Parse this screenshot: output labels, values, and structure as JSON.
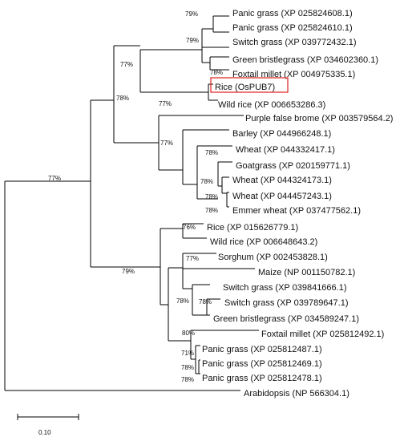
{
  "colors": {
    "highlight_box": "#e02020",
    "lines": "#000000",
    "text": "#111111"
  },
  "tree": {
    "leaves": [
      "Panic grass (XP 025824608.1)",
      "Panic grass (XP 025824610.1)",
      "Switch grass (XP 039772432.1)",
      "Green bristlegrass (XP 034602360.1)",
      "Foxtail millet (XP 004975335.1)",
      "Rice (OsPUB7)",
      "Wild rice (XP 006653286.3)",
      "Purple false brome (XP 003579564.2)",
      "Barley (XP 044966248.1)",
      "Wheat (XP 044332417.1)",
      "Goatgrass (XP 020159771.1)",
      "Wheat (XP 044324173.1)",
      "Wheat (XP 044457243.1)",
      "Emmer wheat (XP 037477562.1)",
      "Rice (XP 015626779.1)",
      "Wild rice (XP 006648643.2)",
      "Sorghum (XP 002453828.1)",
      "Maize (NP 001150782.1)",
      "Switch grass (XP 039841666.1)",
      "Switch grass (XP 039789647.1)",
      "Green bristlegrass (XP 034589247.1)",
      "Foxtail millet (XP 025812492.1)",
      "Panic grass (XP 025812487.1)",
      "Panic grass (XP 025812469.1)",
      "Panic grass (XP 025812478.1)",
      "Arabidopsis (NP 566304.1)"
    ],
    "highlighted_leaf": "Rice (OsPUB7)",
    "bootstrap_labels": [
      "79%",
      "79%",
      "78%",
      "77%",
      "77%",
      "78%",
      "77%",
      "78%",
      "78%",
      "78%",
      "78%",
      "77%",
      "76%",
      "77%",
      "79%",
      "78%",
      "78%",
      "80%",
      "71%",
      "78%",
      "78%"
    ],
    "scale_bar_label": "0.10"
  }
}
